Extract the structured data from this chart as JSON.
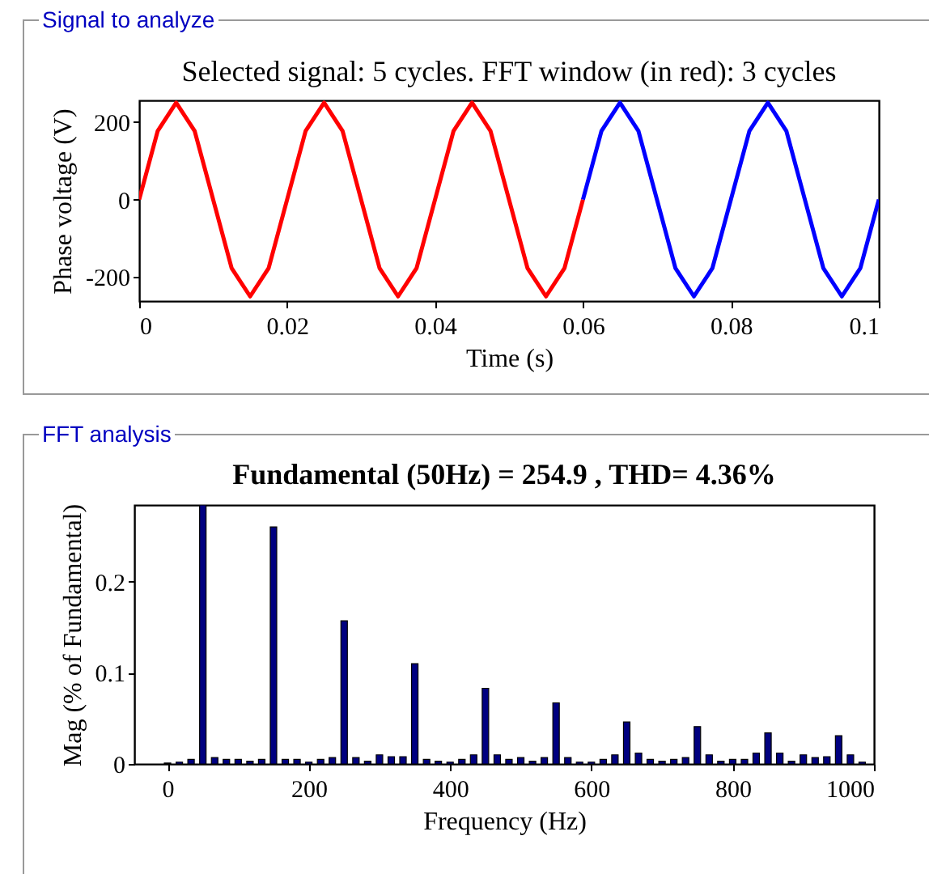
{
  "chart_data": [
    {
      "type": "line",
      "title": "Selected signal: 5 cycles. FFT window (in red): 3 cycles",
      "xlabel": "Time (s)",
      "ylabel": "Phase voltage (V)",
      "annotations": [
        "Signal to analyze"
      ],
      "series": [
        {
          "color": "#ff0000",
          "x": [
            0,
            0.0025,
            0.005,
            0.0075,
            0.01,
            0.0125,
            0.015,
            0.0175,
            0.02,
            0.0225,
            0.025,
            0.0275,
            0.03,
            0.0325,
            0.035,
            0.0375,
            0.04,
            0.0425,
            0.045,
            0.0475,
            0.05,
            0.0525,
            0.055,
            0.0575,
            0.06
          ],
          "values": [
            0,
            177,
            250,
            177,
            0,
            -177,
            -250,
            -177,
            0,
            177,
            250,
            177,
            0,
            -177,
            -250,
            -177,
            0,
            177,
            250,
            177,
            0,
            -177,
            -250,
            -177,
            0
          ]
        },
        {
          "color": "#0000ff",
          "x": [
            0.06,
            0.0625,
            0.065,
            0.0675,
            0.07,
            0.0725,
            0.075,
            0.0775,
            0.08,
            0.0825,
            0.085,
            0.0875,
            0.09,
            0.0925,
            0.095,
            0.0975,
            0.1
          ],
          "values": [
            0,
            177,
            250,
            177,
            0,
            -177,
            -250,
            -177,
            0,
            177,
            250,
            177,
            0,
            -177,
            -250,
            -177,
            0
          ]
        }
      ],
      "xlim": [
        0,
        0.1
      ],
      "ylim": [
        -262,
        256
      ],
      "xticks": [
        0,
        0.02,
        0.04,
        0.06,
        0.08,
        0.1
      ],
      "yticks": [
        -200,
        0,
        200
      ]
    },
    {
      "type": "bar",
      "title": "Fundamental (50Hz) = 254.9 , THD= 4.36%",
      "xlabel": "Frequency (Hz)",
      "ylabel": "Mag (% of Fundamental)",
      "annotations": [
        "FFT analysis"
      ],
      "color": "#000080",
      "x": [
        0,
        16.7,
        33.3,
        50,
        66.7,
        83.3,
        100,
        116.7,
        133.3,
        150,
        166.7,
        183.3,
        200,
        216.7,
        233.3,
        250,
        266.7,
        283.3,
        300,
        316.7,
        333.3,
        350,
        366.7,
        383.3,
        400,
        416.7,
        433.3,
        450,
        466.7,
        483.3,
        500,
        516.7,
        533.3,
        550,
        566.7,
        583.3,
        600,
        616.7,
        633.3,
        650,
        666.7,
        683.3,
        700,
        716.7,
        733.3,
        750,
        766.7,
        783.3,
        800,
        816.7,
        833.3,
        850,
        866.7,
        883.3,
        900,
        916.7,
        933.3,
        950,
        966.7,
        983.3
      ],
      "values": [
        0.001,
        0.002,
        0.005,
        0.284,
        0.007,
        0.005,
        0.005,
        0.003,
        0.005,
        0.26,
        0.005,
        0.005,
        0.002,
        0.005,
        0.007,
        0.157,
        0.007,
        0.003,
        0.01,
        0.008,
        0.008,
        0.11,
        0.005,
        0.003,
        0.002,
        0.005,
        0.01,
        0.083,
        0.01,
        0.005,
        0.007,
        0.003,
        0.007,
        0.067,
        0.007,
        0.002,
        0.002,
        0.005,
        0.01,
        0.046,
        0.012,
        0.005,
        0.003,
        0.005,
        0.007,
        0.041,
        0.01,
        0.003,
        0.005,
        0.005,
        0.012,
        0.034,
        0.012,
        0.003,
        0.01,
        0.007,
        0.008,
        0.031,
        0.01,
        0.002
      ],
      "xlim": [
        -47,
        1000
      ],
      "ylim": [
        0,
        0.284
      ],
      "xticks": [
        0,
        200,
        400,
        600,
        800,
        1000
      ],
      "yticks": [
        0,
        0.1,
        0.2
      ]
    }
  ]
}
